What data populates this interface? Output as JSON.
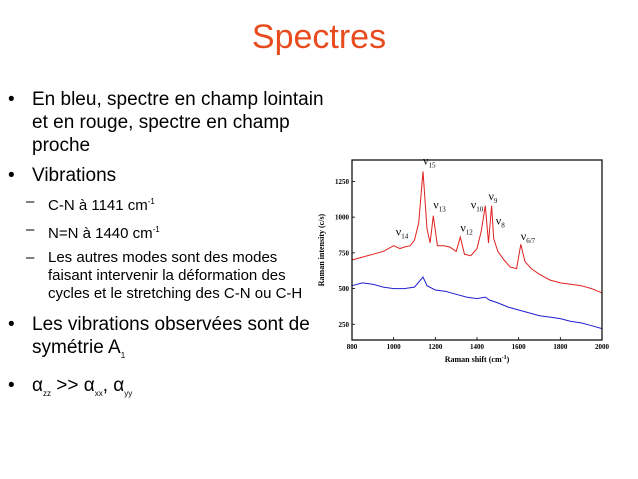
{
  "slide": {
    "title": "Spectres",
    "bullet_char": "•",
    "dash_char": "–",
    "bullets": [
      {
        "text": "En bleu, spectre en champ lointain et en rouge, spectre en champ proche"
      },
      {
        "text": "Vibrations",
        "sub": [
          {
            "pre": "C-N à 1141 cm",
            "sup": "-1"
          },
          {
            "pre": "N=N à 1440 cm",
            "sup": "-1"
          },
          {
            "pre": "Les autres modes sont des modes faisant intervenir la déformation des cycles et le stretching des C-N ou C-H"
          }
        ]
      },
      {
        "pre": "Les vibrations observées sont de symétrie A",
        "sub": "1"
      },
      {
        "alpha": "α",
        "zz": "zz",
        "gt": " >> ",
        "xx": "xx",
        "comma": ", ",
        "yy": "yy"
      }
    ]
  },
  "chart_data": {
    "type": "line",
    "xlabel": "Raman shift (cm",
    "xlabel_sup": "-1",
    "xlabel_end": ")",
    "ylabel": "Raman intensity (c/s)",
    "xlim": [
      800,
      2000
    ],
    "ylim": [
      140,
      1400
    ],
    "xticks": [
      800,
      1000,
      1200,
      1400,
      1600,
      1800,
      2000
    ],
    "yticks": [
      250,
      500,
      750,
      1000,
      1250
    ],
    "grid": false,
    "series": [
      {
        "color": "#e02020",
        "x": [
          800,
          850,
          900,
          950,
          1000,
          1030,
          1050,
          1080,
          1100,
          1120,
          1141,
          1160,
          1175,
          1190,
          1210,
          1240,
          1270,
          1300,
          1320,
          1340,
          1370,
          1400,
          1420,
          1440,
          1455,
          1470,
          1480,
          1500,
          1530,
          1560,
          1590,
          1610,
          1630,
          1660,
          1700,
          1750,
          1800,
          1850,
          1900,
          1950,
          2000
        ],
        "y": [
          700,
          720,
          740,
          760,
          800,
          780,
          790,
          800,
          840,
          960,
          1320,
          920,
          820,
          1010,
          800,
          800,
          790,
          760,
          860,
          740,
          730,
          780,
          900,
          1080,
          820,
          1080,
          850,
          760,
          700,
          650,
          640,
          810,
          690,
          640,
          600,
          560,
          540,
          530,
          520,
          500,
          470
        ]
      },
      {
        "color": "#2020d0",
        "x": [
          800,
          850,
          900,
          950,
          1000,
          1050,
          1100,
          1141,
          1160,
          1200,
          1250,
          1300,
          1350,
          1400,
          1440,
          1460,
          1500,
          1550,
          1600,
          1650,
          1700,
          1750,
          1800,
          1850,
          1900,
          1950,
          2000
        ],
        "y": [
          520,
          540,
          530,
          510,
          500,
          500,
          510,
          580,
          520,
          490,
          480,
          460,
          440,
          430,
          440,
          420,
          400,
          370,
          350,
          330,
          310,
          300,
          290,
          270,
          260,
          240,
          220
        ]
      }
    ],
    "annotations": [
      {
        "label": "ν",
        "sub": "14",
        "x": 1010,
        "y": 870
      },
      {
        "label": "ν",
        "sub": "15",
        "x": 1141,
        "y": 1370
      },
      {
        "label": "ν",
        "sub": "13",
        "x": 1190,
        "y": 1060
      },
      {
        "label": "ν",
        "sub": "12",
        "x": 1320,
        "y": 900
      },
      {
        "label": "ν",
        "sub": "10",
        "x": 1370,
        "y": 1060
      },
      {
        "label": "ν",
        "sub": "9",
        "x": 1455,
        "y": 1120
      },
      {
        "label": "ν",
        "sub": "8",
        "x": 1490,
        "y": 950
      },
      {
        "label": "ν",
        "sub": "6/7",
        "x": 1610,
        "y": 840
      }
    ]
  }
}
